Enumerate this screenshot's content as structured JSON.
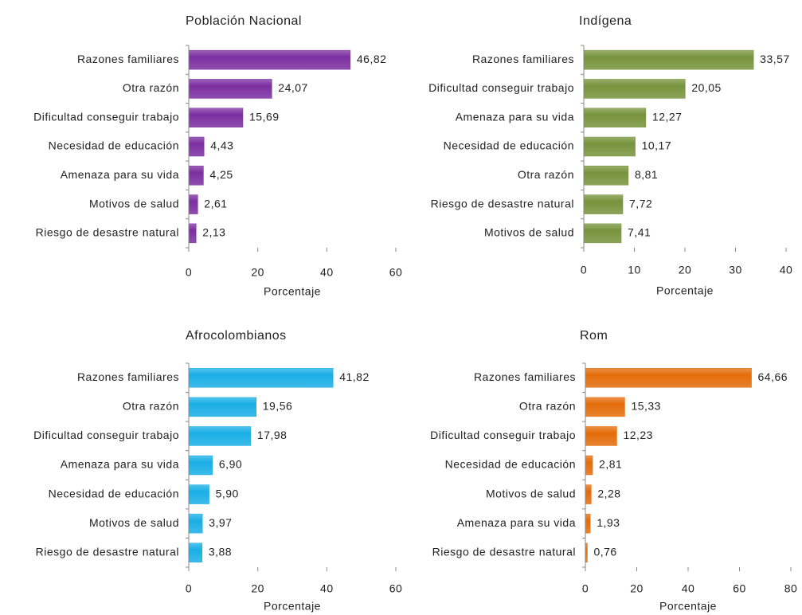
{
  "chart_data": [
    {
      "type": "bar",
      "orientation": "horizontal",
      "title": "Población Nacional",
      "x_label": "Porcentaje",
      "categories": [
        "Razones familiares",
        "Otra razón",
        "Dificultad conseguir trabajo",
        "Necesidad de educación",
        "Amenaza para su vida",
        "Motivos de salud",
        "Riesgo de desastre natural"
      ],
      "values": [
        46.82,
        24.07,
        15.69,
        4.43,
        4.25,
        2.61,
        2.13
      ],
      "value_labels": [
        "46,82",
        "24,07",
        "15,69",
        "4,43",
        "4,25",
        "2,61",
        "2,13"
      ],
      "color": "#7b2fa0",
      "xlim": [
        0,
        60
      ],
      "xticks": [
        0,
        20,
        40,
        60
      ]
    },
    {
      "type": "bar",
      "orientation": "horizontal",
      "title": "Indígena",
      "x_label": "Porcentaje",
      "categories": [
        "Razones familiares",
        "Dificultad conseguir trabajo",
        "Amenaza para su vida",
        "Necesidad de educación",
        "Otra razón",
        "Riesgo de desastre natural",
        "Motivos de salud"
      ],
      "values": [
        33.57,
        20.05,
        12.27,
        10.17,
        8.81,
        7.72,
        7.41
      ],
      "value_labels": [
        "33,57",
        "20,05",
        "12,27",
        "10,17",
        "8,81",
        "7,72",
        "7,41"
      ],
      "color": "#77933c",
      "xlim": [
        0,
        40
      ],
      "xticks": [
        0,
        10,
        20,
        30,
        40
      ]
    },
    {
      "type": "bar",
      "orientation": "horizontal",
      "title": "Afrocolombianos",
      "x_label": "Porcentaje",
      "categories": [
        "Razones familiares",
        "Otra razón",
        "Dificultad conseguir trabajo",
        "Amenaza para su vida",
        "Necesidad de educación",
        "Motivos de salud",
        "Riesgo de desastre natural"
      ],
      "values": [
        41.82,
        19.56,
        17.98,
        6.9,
        5.9,
        3.97,
        3.88
      ],
      "value_labels": [
        "41,82",
        "19,56",
        "17,98",
        "6,90",
        "5,90",
        "3,97",
        "3,88"
      ],
      "color": "#1aaee6",
      "xlim": [
        0,
        60
      ],
      "xticks": [
        0,
        20,
        40,
        60
      ]
    },
    {
      "type": "bar",
      "orientation": "horizontal",
      "title": "Rom",
      "x_label": "Porcentaje",
      "categories": [
        "Razones familiares",
        "Otra razón",
        "Dificultad conseguir trabajo",
        "Necesidad de educación",
        "Motivos de salud",
        "Amenaza para su vida",
        "Riesgo de desastre natural"
      ],
      "values": [
        64.66,
        15.33,
        12.23,
        2.81,
        2.28,
        1.93,
        0.76
      ],
      "value_labels": [
        "64,66",
        "15,33",
        "12,23",
        "2,81",
        "2,28",
        "1,93",
        "0,76"
      ],
      "color": "#e46c0a",
      "xlim": [
        0,
        80
      ],
      "xticks": [
        0,
        20,
        40,
        60,
        80
      ]
    }
  ]
}
